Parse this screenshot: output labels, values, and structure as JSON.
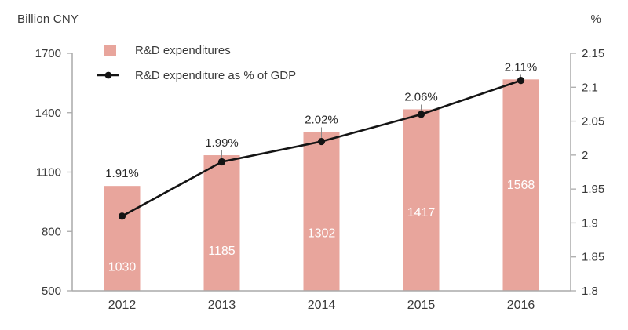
{
  "header": {
    "left_unit": "Billion CNY",
    "right_unit": "%"
  },
  "legend": {
    "bars_label": "R&D expenditures",
    "line_label": "R&D expenditure as % of GDP"
  },
  "colors": {
    "bar": "#e8a59c",
    "line": "#141414",
    "dot": "#141414",
    "axis": "#aaaaaa",
    "leader": "#8a8a8a",
    "tick_text": "#3a3a3a",
    "data_label_text": "#2b2b2b",
    "bar_label_text": "#ffffff"
  },
  "chart_data": {
    "type": "bar+line combo",
    "categories": [
      "2012",
      "2013",
      "2014",
      "2015",
      "2016"
    ],
    "series": [
      {
        "name": "R&D expenditures",
        "type": "bar",
        "axis": "left",
        "values": [
          1030,
          1185,
          1302,
          1417,
          1568
        ],
        "labels": [
          "1030",
          "1185",
          "1302",
          "1417",
          "1568"
        ]
      },
      {
        "name": "R&D expenditure as % of GDP",
        "type": "line",
        "axis": "right",
        "values": [
          1.91,
          1.99,
          2.02,
          2.06,
          2.11
        ],
        "labels": [
          "1.91%",
          "1.99%",
          "2.02%",
          "2.06%",
          "2.11%"
        ]
      }
    ],
    "left_axis": {
      "title": "Billion CNY",
      "min": 500,
      "max": 1700,
      "tick_labels": [
        "1700",
        "1400",
        "1100",
        "800",
        "500"
      ]
    },
    "right_axis": {
      "title": "%",
      "min": 1.8,
      "max": 2.15,
      "tick_labels": [
        "2.15",
        "2.1",
        "2.05",
        "2",
        "1.95",
        "1.9",
        "1.85",
        "1.8"
      ]
    },
    "grid": false,
    "legend_position": "inside top-left"
  }
}
